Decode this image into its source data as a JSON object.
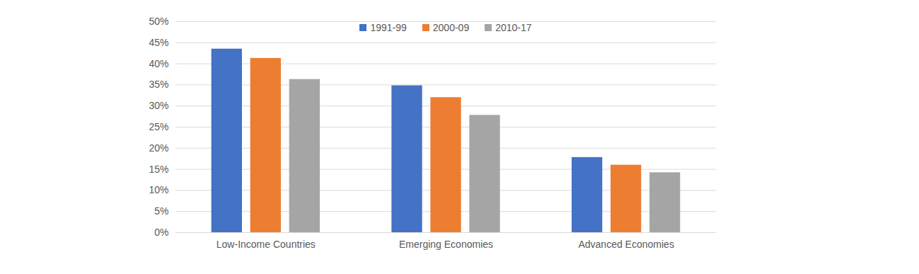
{
  "chart_data": {
    "type": "bar",
    "categories": [
      "Low-Income Countries",
      "Emerging Economies",
      "Advanced Economies"
    ],
    "series": [
      {
        "name": "1991-99",
        "color": "#4472c4",
        "values": [
          43.5,
          34.8,
          17.8
        ]
      },
      {
        "name": "2000-09",
        "color": "#ed7d31",
        "values": [
          41.3,
          32.0,
          16.0
        ]
      },
      {
        "name": "2010-17",
        "color": "#a5a5a5",
        "values": [
          36.3,
          27.8,
          14.2
        ]
      }
    ],
    "ylim": [
      0,
      50
    ],
    "yticks": [
      {
        "value": 0,
        "label": "0%"
      },
      {
        "value": 5,
        "label": "5%"
      },
      {
        "value": 10,
        "label": "10%"
      },
      {
        "value": 15,
        "label": "15%"
      },
      {
        "value": 20,
        "label": "20%"
      },
      {
        "value": 25,
        "label": "25%"
      },
      {
        "value": 30,
        "label": "30%"
      },
      {
        "value": 35,
        "label": "35%"
      },
      {
        "value": 40,
        "label": "40%"
      },
      {
        "value": 45,
        "label": "45%"
      },
      {
        "value": 50,
        "label": "50%"
      }
    ],
    "grid": true,
    "legend": "top"
  }
}
